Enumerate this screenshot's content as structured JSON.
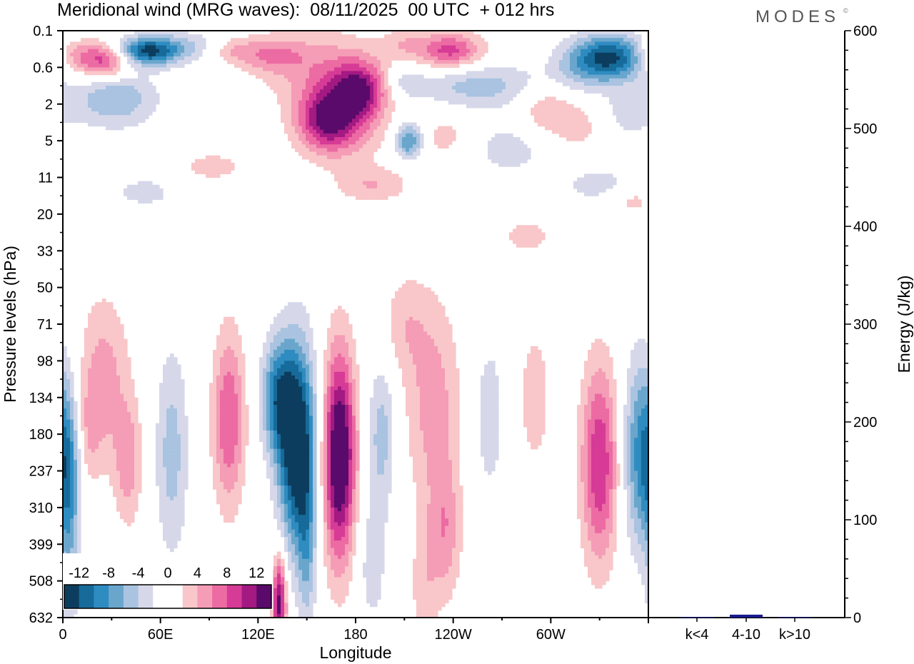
{
  "chart_data": {
    "type": "heatmap",
    "title": "Meridional wind (MRG waves):  08/11/2025  00 UTC  + 012 hrs",
    "brand": "MODES",
    "brand_mark": "©",
    "xlabel": "Longitude",
    "ylabel": "Pressure levels (hPa)",
    "x_ticks": [
      "0",
      "60E",
      "120E",
      "180",
      "120W",
      "60W"
    ],
    "x_tick_degrees": [
      0,
      60,
      120,
      180,
      240,
      300
    ],
    "x_range_degrees": [
      0,
      360
    ],
    "y_ticks": [
      "0.1",
      "0.6",
      "2",
      "5",
      "11",
      "20",
      "33",
      "50",
      "71",
      "98",
      "134",
      "180",
      "237",
      "310",
      "399",
      "508",
      "632"
    ],
    "colorbar": {
      "labels": [
        "-12",
        "-8",
        "-4",
        "0",
        "4",
        "8",
        "12"
      ],
      "colors": [
        "#0d3d5e",
        "#166b9a",
        "#2f8cc1",
        "#6aa6cc",
        "#a9c3e0",
        "#d6d8ea",
        "#ffffff",
        "#ffffff",
        "#f9c7c9",
        "#f59cb6",
        "#ec6ba3",
        "#d63b96",
        "#a21a82",
        "#5a0a6a"
      ]
    },
    "energy_panel": {
      "ylabel": "Energy (J/kg)",
      "ylim": [
        0,
        600
      ],
      "y_ticks": [
        "0",
        "100",
        "200",
        "300",
        "400",
        "500",
        "600"
      ],
      "categories": [
        "k<4",
        "4-10",
        "k>10"
      ],
      "values": [
        0.5,
        3,
        0.5
      ],
      "bar_color": "#1a1a8c"
    },
    "field": [
      {
        "lon": 52,
        "lev": 0.55,
        "w": 14,
        "h": 0.28,
        "amp": -13
      },
      {
        "lon": 25,
        "lev": 0.8,
        "w": 12,
        "h": 0.35,
        "amp": 10
      },
      {
        "lon": 5,
        "lev": 0.65,
        "w": 8,
        "h": 0.3,
        "amp": 4
      },
      {
        "lon": 32,
        "lev": 1.85,
        "w": 18,
        "h": 0.55,
        "amp": -6
      },
      {
        "lon": 78,
        "lev": 0.4,
        "w": 12,
        "h": 0.3,
        "amp": -3
      },
      {
        "lon": 105,
        "lev": 0.55,
        "w": 10,
        "h": 0.25,
        "amp": 3
      },
      {
        "lon": 128,
        "lev": 0.65,
        "w": 14,
        "h": 0.35,
        "amp": 5
      },
      {
        "lon": 160,
        "lev": 1.1,
        "w": 24,
        "h": 0.8,
        "amp": 5
      },
      {
        "lon": 182,
        "lev": 1.65,
        "w": 12,
        "h": 0.55,
        "amp": 11
      },
      {
        "lon": 162,
        "lev": 2.35,
        "w": 12,
        "h": 0.55,
        "amp": 9
      },
      {
        "lon": 170,
        "lev": 2.8,
        "w": 18,
        "h": 0.6,
        "amp": 5
      },
      {
        "lon": 210,
        "lev": 0.35,
        "w": 10,
        "h": 0.3,
        "amp": 3
      },
      {
        "lon": 238,
        "lev": 0.55,
        "w": 14,
        "h": 0.35,
        "amp": 9
      },
      {
        "lon": 210,
        "lev": 1.4,
        "w": 8,
        "h": 0.3,
        "amp": -3
      },
      {
        "lon": 256,
        "lev": 1.5,
        "w": 28,
        "h": 0.45,
        "amp": -5
      },
      {
        "lon": 213,
        "lev": 3.0,
        "w": 6,
        "h": 0.35,
        "amp": -9
      },
      {
        "lon": 236,
        "lev": 2.9,
        "w": 14,
        "h": 0.5,
        "amp": 3
      },
      {
        "lon": 273,
        "lev": 3.2,
        "w": 20,
        "h": 0.55,
        "amp": -3
      },
      {
        "lon": 297,
        "lev": 2.1,
        "w": 12,
        "h": 0.5,
        "amp": 4
      },
      {
        "lon": 335,
        "lev": 0.75,
        "w": 16,
        "h": 0.45,
        "amp": -13
      },
      {
        "lon": 312,
        "lev": 1.2,
        "w": 12,
        "h": 0.5,
        "amp": -2
      },
      {
        "lon": 318,
        "lev": 2.6,
        "w": 14,
        "h": 0.5,
        "amp": 3
      },
      {
        "lon": 345,
        "lev": 2.3,
        "w": 14,
        "h": 0.5,
        "amp": -3
      },
      {
        "lon": 190,
        "lev": 4.2,
        "w": 16,
        "h": 0.35,
        "amp": 4
      },
      {
        "lon": 92,
        "lev": 3.7,
        "w": 14,
        "h": 0.3,
        "amp": 3
      },
      {
        "lon": 50,
        "lev": 4.4,
        "w": 14,
        "h": 0.3,
        "amp": -3
      },
      {
        "lon": 330,
        "lev": 4.2,
        "w": 18,
        "h": 0.35,
        "amp": -3
      },
      {
        "lon": 350,
        "lev": 4.6,
        "w": 10,
        "h": 0.3,
        "amp": 3
      },
      {
        "lon": 285,
        "lev": 5.6,
        "w": 12,
        "h": 0.35,
        "amp": 3
      },
      {
        "lon": 120,
        "lev": 5.5,
        "w": 8,
        "h": 0.25,
        "amp": -2
      },
      {
        "lon": 240,
        "lev": 5.9,
        "w": 10,
        "h": 0.35,
        "amp": -2
      },
      {
        "lon": 325,
        "lev": 5.5,
        "w": 10,
        "h": 0.35,
        "amp": -2
      },
      {
        "lon": 25,
        "lev": 9.5,
        "w": 11,
        "h": 1.6,
        "amp": 5
      },
      {
        "lon": 40,
        "lev": 11.8,
        "w": 6,
        "h": 1.2,
        "amp": 5
      },
      {
        "lon": 67,
        "lev": 11.5,
        "w": 7,
        "h": 2.0,
        "amp": -5
      },
      {
        "lon": 102,
        "lev": 10.6,
        "w": 7,
        "h": 1.7,
        "amp": 8
      },
      {
        "lon": 132,
        "lev": 10.0,
        "w": 7,
        "h": 1.1,
        "amp": -9
      },
      {
        "lon": 144,
        "lev": 11.3,
        "w": 8,
        "h": 1.9,
        "amp": -16
      },
      {
        "lon": 170,
        "lev": 11.6,
        "w": 7,
        "h": 2.0,
        "amp": 16
      },
      {
        "lon": 150,
        "lev": 14.2,
        "w": 4,
        "h": 1.6,
        "amp": -5
      },
      {
        "lon": 133,
        "lev": 15.6,
        "w": 3,
        "h": 0.9,
        "amp": 13
      },
      {
        "lon": 196,
        "lev": 11.0,
        "w": 6,
        "h": 1.4,
        "amp": -5
      },
      {
        "lon": 190,
        "lev": 14.5,
        "w": 7,
        "h": 1.4,
        "amp": -3
      },
      {
        "lon": 228,
        "lev": 10.2,
        "w": 12,
        "h": 2.0,
        "amp": 5
      },
      {
        "lon": 210,
        "lev": 8.0,
        "w": 10,
        "h": 1.0,
        "amp": 3
      },
      {
        "lon": 235,
        "lev": 13.7,
        "w": 7,
        "h": 1.3,
        "amp": 5
      },
      {
        "lon": 222,
        "lev": 15.2,
        "w": 6,
        "h": 1.3,
        "amp": 3
      },
      {
        "lon": 262,
        "lev": 10.5,
        "w": 8,
        "h": 1.8,
        "amp": -3
      },
      {
        "lon": 290,
        "lev": 10.0,
        "w": 8,
        "h": 1.6,
        "amp": 3
      },
      {
        "lon": 330,
        "lev": 11.8,
        "w": 8,
        "h": 1.9,
        "amp": 10
      },
      {
        "lon": 356,
        "lev": 11.5,
        "w": 8,
        "h": 1.8,
        "amp": -9
      },
      {
        "lon": 4,
        "lev": 12.0,
        "w": 5,
        "h": 1.5,
        "amp": -6
      },
      {
        "lon": 4,
        "lev": 15.0,
        "w": 4,
        "h": 1.5,
        "amp": -3
      },
      {
        "lon": 15,
        "lev": 11.0,
        "w": 6,
        "h": 1.0,
        "amp": 3
      }
    ]
  }
}
